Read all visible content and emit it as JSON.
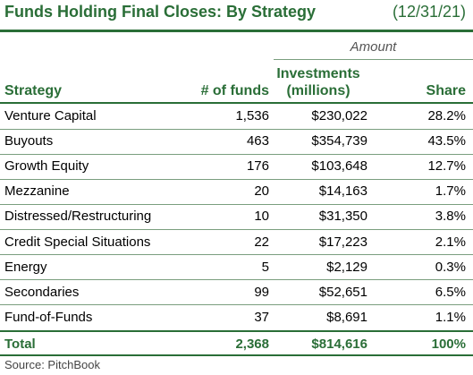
{
  "title": "Funds Holding Final Closes: By Strategy",
  "date": "(12/31/21)",
  "amount_label": "Amount",
  "headers": {
    "strategy": "Strategy",
    "num_funds": "# of funds",
    "investments_line1": "Investments",
    "investments_line2": "(millions)",
    "share": "Share"
  },
  "rows": [
    {
      "strategy": "Venture Capital",
      "num_funds": "1,536",
      "investments": "$230,022",
      "share": "28.2%"
    },
    {
      "strategy": "Buyouts",
      "num_funds": "463",
      "investments": "$354,739",
      "share": "43.5%"
    },
    {
      "strategy": "Growth Equity",
      "num_funds": "176",
      "investments": "$103,648",
      "share": "12.7%"
    },
    {
      "strategy": "Mezzanine",
      "num_funds": "20",
      "investments": "$14,163",
      "share": "1.7%"
    },
    {
      "strategy": "Distressed/Restructuring",
      "num_funds": "10",
      "investments": "$31,350",
      "share": "3.8%"
    },
    {
      "strategy": "Credit Special Situations",
      "num_funds": "22",
      "investments": "$17,223",
      "share": "2.1%"
    },
    {
      "strategy": "Energy",
      "num_funds": "5",
      "investments": "$2,129",
      "share": "0.3%"
    },
    {
      "strategy": "Secondaries",
      "num_funds": "99",
      "investments": "$52,651",
      "share": "6.5%"
    },
    {
      "strategy": "Fund-of-Funds",
      "num_funds": "37",
      "investments": "$8,691",
      "share": "1.1%"
    }
  ],
  "total": {
    "label": "Total",
    "num_funds": "2,368",
    "investments": "$814,616",
    "share": "100%"
  },
  "source": "Source: PitchBook",
  "colors": {
    "accent": "#2a6e37",
    "rule": "#7a9e7e"
  }
}
